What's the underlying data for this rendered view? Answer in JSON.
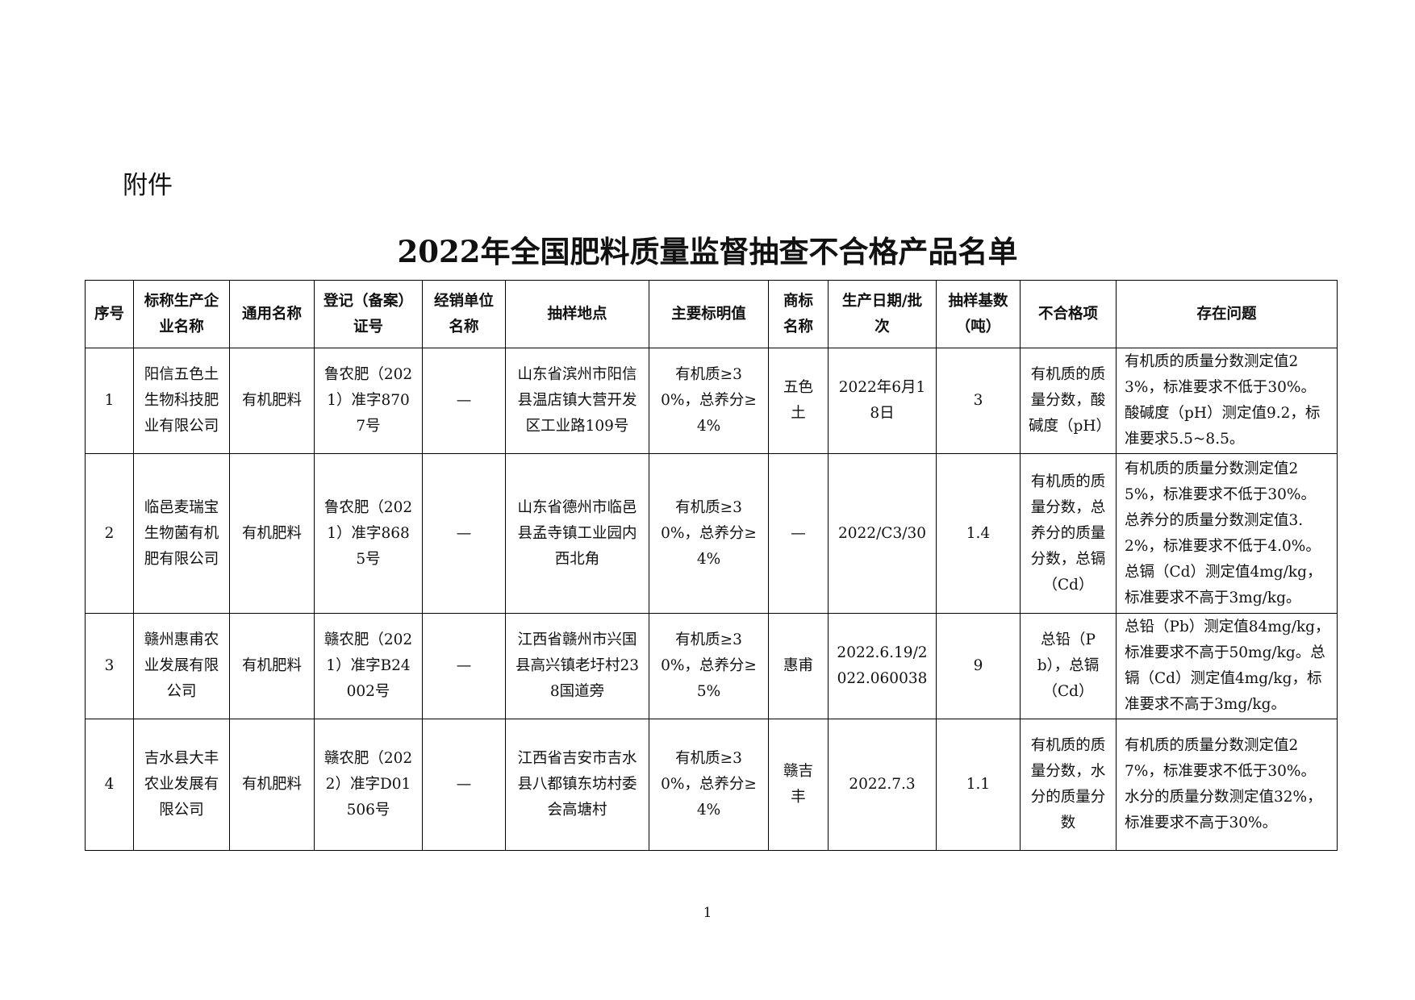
{
  "attachment_label": "附件",
  "title": "2022年全国肥料质量监督抽查不合格产品名单",
  "table": {
    "headers": [
      "序号",
      "标称生产企业名称",
      "通用名称",
      "登记（备案）证号",
      "经销单位名称",
      "抽样地点",
      "主要标明值",
      "商标名称",
      "生产日期/批次",
      "抽样基数（吨）",
      "不合格项",
      "存在问题"
    ],
    "rows": [
      [
        "1",
        "阳信五色土生物科技肥业有限公司",
        "有机肥料",
        "鲁农肥（2021）准字8707号",
        "—",
        "山东省滨州市阳信县温店镇大营开发区工业路109号",
        "有机质≥30%，总养分≥4%",
        "五色土",
        "2022年6月18日",
        "3",
        "有机质的质量分数，酸碱度（pH）",
        "有机质的质量分数测定值23%，标准要求不低于30%。酸碱度（pH）测定值9.2，标准要求5.5~8.5。"
      ],
      [
        "2",
        "临邑麦瑞宝生物菌有机肥有限公司",
        "有机肥料",
        "鲁农肥（2021）准字8685号",
        "—",
        "山东省德州市临邑县孟寺镇工业园内西北角",
        "有机质≥30%，总养分≥4%",
        "—",
        "2022/C3/30",
        "1.4",
        "有机质的质量分数，总养分的质量分数，总镉（Cd）",
        "有机质的质量分数测定值25%，标准要求不低于30%。总养分的质量分数测定值3.2%，标准要求不低于4.0%。总镉（Cd）测定值4mg/kg，标准要求不高于3mg/kg。"
      ],
      [
        "3",
        "赣州惠甫农业发展有限公司",
        "有机肥料",
        "赣农肥（2021）准字B24002号",
        "—",
        "江西省赣州市兴国县高兴镇老圩村238国道旁",
        "有机质≥30%，总养分≥5%",
        "惠甫",
        "2022.6.19/2022.060038",
        "9",
        "总铅（Pb），总镉（Cd）",
        "总铅（Pb）测定值84mg/kg，标准要求不高于50mg/kg。总镉（Cd）测定值4mg/kg，标准要求不高于3mg/kg。"
      ],
      [
        "4",
        "吉水县大丰农业发展有限公司",
        "有机肥料",
        "赣农肥（2022）准字D01506号",
        "—",
        "江西省吉安市吉水县八都镇东坊村委会高塘村",
        "有机质≥30%，总养分≥4%",
        "赣吉丰",
        "2022.7.3",
        "1.1",
        "有机质的质量分数，水分的质量分数",
        "有机质的质量分数测定值27%，标准要求不低于30%。水分的质量分数测定值32%，标准要求不高于30%。"
      ]
    ]
  },
  "page_number": "1"
}
